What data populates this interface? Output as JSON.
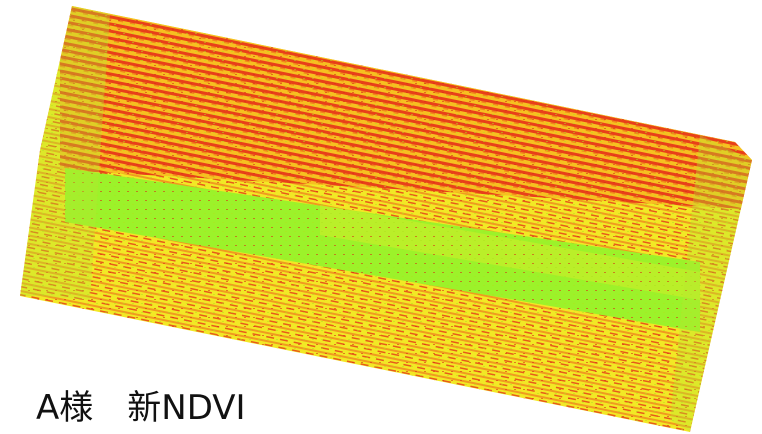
{
  "caption": "A様　新NDVI"
}
